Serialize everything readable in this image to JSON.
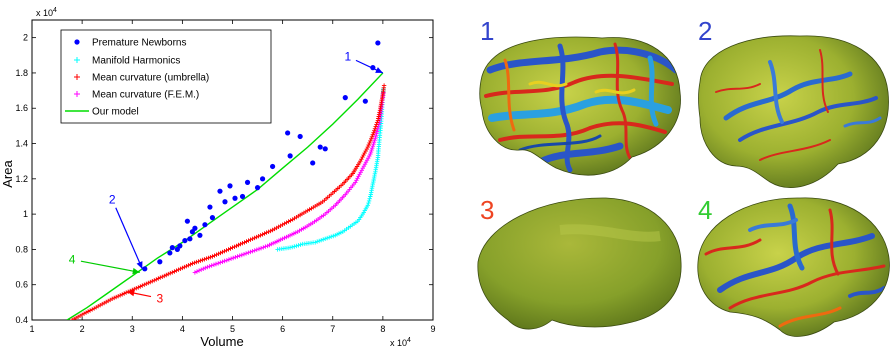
{
  "chart_data": {
    "type": "scatter",
    "xlabel": "Volume",
    "ylabel": "Area",
    "x_exponent": "x 10",
    "x_exponent_power": "4",
    "y_exponent": "x 10",
    "y_exponent_power": "4",
    "xlim": [
      1,
      9
    ],
    "ylim": [
      0.4,
      2.1
    ],
    "xticks": [
      "1",
      "2",
      "3",
      "4",
      "5",
      "6",
      "7",
      "8",
      "9"
    ],
    "xtick_values": [
      1,
      2,
      3,
      4,
      5,
      6,
      7,
      8,
      9
    ],
    "yticks": [
      "0.4",
      "0.6",
      "0.8",
      "1",
      "1.2",
      "1.4",
      "1.6",
      "1.8",
      "2"
    ],
    "ytick_values": [
      0.4,
      0.6,
      0.8,
      1.0,
      1.2,
      1.4,
      1.6,
      1.8,
      2.0
    ],
    "legend_position": "top-left",
    "grid": false,
    "series": [
      {
        "name": "Premature Newborns",
        "marker": "dot",
        "color": "#0000ff",
        "x": [
          3.25,
          3.55,
          3.75,
          3.8,
          3.9,
          3.95,
          4.05,
          4.1,
          4.15,
          4.2,
          4.25,
          4.35,
          4.45,
          4.55,
          4.6,
          4.75,
          4.85,
          4.95,
          5.05,
          5.2,
          5.3,
          5.5,
          5.6,
          5.8,
          6.1,
          6.15,
          6.35,
          6.6,
          6.75,
          6.85,
          7.25,
          7.65,
          7.8,
          7.9
        ],
        "y": [
          0.69,
          0.73,
          0.78,
          0.81,
          0.8,
          0.82,
          0.85,
          0.96,
          0.86,
          0.9,
          0.92,
          0.88,
          0.94,
          1.04,
          0.98,
          1.13,
          1.07,
          1.16,
          1.09,
          1.1,
          1.18,
          1.15,
          1.2,
          1.27,
          1.46,
          1.33,
          1.44,
          1.29,
          1.38,
          1.37,
          1.66,
          1.64,
          1.83,
          1.97
        ]
      },
      {
        "name": "Manifold Harmonics",
        "marker": "plus",
        "color": "#00ffff",
        "x": [
          5.9,
          6.15,
          6.4,
          6.65,
          6.85,
          7.05,
          7.2,
          7.35,
          7.5,
          7.6,
          7.7,
          7.75,
          7.8,
          7.85,
          7.9,
          7.93,
          7.96,
          7.98,
          8.0,
          8.01
        ],
        "y": [
          0.8,
          0.81,
          0.83,
          0.84,
          0.86,
          0.88,
          0.9,
          0.93,
          0.96,
          1.0,
          1.05,
          1.1,
          1.17,
          1.24,
          1.32,
          1.42,
          1.5,
          1.58,
          1.66,
          1.72
        ]
      },
      {
        "name": "Mean curvature (umbrella)",
        "marker": "plus",
        "color": "#ff0000",
        "x": [
          1.8,
          2.2,
          2.6,
          3.0,
          3.4,
          3.8,
          4.2,
          4.6,
          5.0,
          5.4,
          5.8,
          6.2,
          6.5,
          6.8,
          7.0,
          7.2,
          7.4,
          7.55,
          7.7,
          7.8,
          7.9,
          7.95,
          8.0,
          8.03
        ],
        "y": [
          0.4,
          0.46,
          0.52,
          0.57,
          0.62,
          0.67,
          0.72,
          0.76,
          0.81,
          0.86,
          0.91,
          0.97,
          1.02,
          1.07,
          1.12,
          1.17,
          1.23,
          1.3,
          1.38,
          1.45,
          1.53,
          1.6,
          1.68,
          1.74
        ]
      },
      {
        "name": "Mean curvature (F.E.M.)",
        "marker": "plus",
        "color": "#ff00ff",
        "x": [
          4.25,
          4.5,
          4.8,
          5.1,
          5.4,
          5.7,
          6.0,
          6.3,
          6.6,
          6.85,
          7.05,
          7.25,
          7.45,
          7.6,
          7.75,
          7.85,
          7.93,
          7.98,
          8.02
        ],
        "y": [
          0.67,
          0.7,
          0.73,
          0.76,
          0.79,
          0.82,
          0.86,
          0.9,
          0.95,
          1.0,
          1.05,
          1.11,
          1.18,
          1.26,
          1.34,
          1.43,
          1.52,
          1.62,
          1.7
        ]
      },
      {
        "name": "Our model",
        "marker": "line",
        "color": "#00dd00",
        "x": [
          1.7,
          2.1,
          2.5,
          3.0,
          3.5,
          4.0,
          4.5,
          5.0,
          5.5,
          6.0,
          6.5,
          7.0,
          7.5,
          8.0
        ],
        "y": [
          0.4,
          0.47,
          0.55,
          0.65,
          0.75,
          0.84,
          0.94,
          1.04,
          1.14,
          1.26,
          1.38,
          1.51,
          1.65,
          1.8
        ]
      }
    ],
    "annotations": [
      {
        "label": "1",
        "color": "#0000ff",
        "text_x": 7.3,
        "text_y": 1.87,
        "x": 8.0,
        "y": 1.8
      },
      {
        "label": "2",
        "color": "#0000ff",
        "text_x": 2.6,
        "text_y": 1.06,
        "x": 3.2,
        "y": 0.69
      },
      {
        "label": "3",
        "color": "#ff0000",
        "text_x": 3.55,
        "text_y": 0.5,
        "x": 2.9,
        "y": 0.56
      },
      {
        "label": "4",
        "color": "#00cc00",
        "text_x": 1.8,
        "text_y": 0.72,
        "x": 3.15,
        "y": 0.67
      }
    ]
  },
  "brain_panels": [
    {
      "label": "1",
      "color": "#3344cc"
    },
    {
      "label": "2",
      "color": "#3344cc"
    },
    {
      "label": "3",
      "color": "#ee4422"
    },
    {
      "label": "4",
      "color": "#33cc33"
    }
  ]
}
